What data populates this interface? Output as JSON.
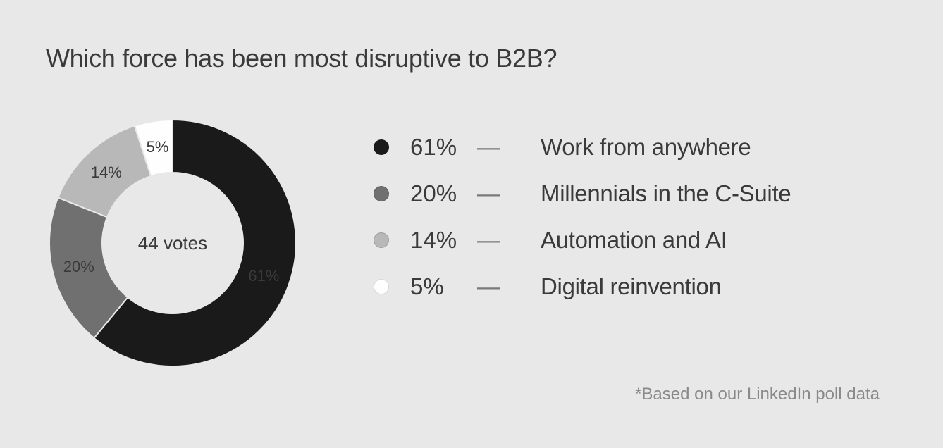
{
  "title": "Which force has been most disruptive to B2B?",
  "background_color": "#e8e8e8",
  "text_color": "#3a3a3a",
  "title_fontsize": 36,
  "chart": {
    "type": "donut",
    "center_text": "44 votes",
    "center_fontsize": 26,
    "outer_radius": 175,
    "inner_radius": 100,
    "start_angle_deg": 0,
    "direction": "clockwise",
    "slice_stroke": "#e8e8e8",
    "slice_stroke_width": 2,
    "slice_label_fontsize": 22,
    "slices": [
      {
        "label": "Work from anywhere",
        "value": 61,
        "display": "61%",
        "color": "#1a1a1a",
        "label_color": "#3a3a3a"
      },
      {
        "label": "Millennials in the C-Suite",
        "value": 20,
        "display": "20%",
        "color": "#707070",
        "label_color": "#3a3a3a"
      },
      {
        "label": "Automation and AI",
        "value": 14,
        "display": "14%",
        "color": "#b8b8b8",
        "label_color": "#3a3a3a"
      },
      {
        "label": "Digital reinvention",
        "value": 5,
        "display": "5%",
        "color": "#fefefe",
        "label_color": "#3a3a3a"
      }
    ]
  },
  "legend": {
    "row_fontsize": 33,
    "swatch_diameter": 22,
    "dash": "—",
    "dash_color": "#7a7a7a",
    "items": [
      {
        "pct": "61%",
        "label": "Work from anywhere",
        "swatch": "#1a1a1a"
      },
      {
        "pct": "20%",
        "label": "Millennials in the C-Suite",
        "swatch": "#707070"
      },
      {
        "pct": "14%",
        "label": "Automation and AI",
        "swatch": "#b8b8b8"
      },
      {
        "pct": "5%",
        "label": "Digital reinvention",
        "swatch": "#fefefe"
      }
    ]
  },
  "footnote": "*Based on our LinkedIn poll data",
  "footnote_color": "#8a8a8a",
  "footnote_fontsize": 24
}
